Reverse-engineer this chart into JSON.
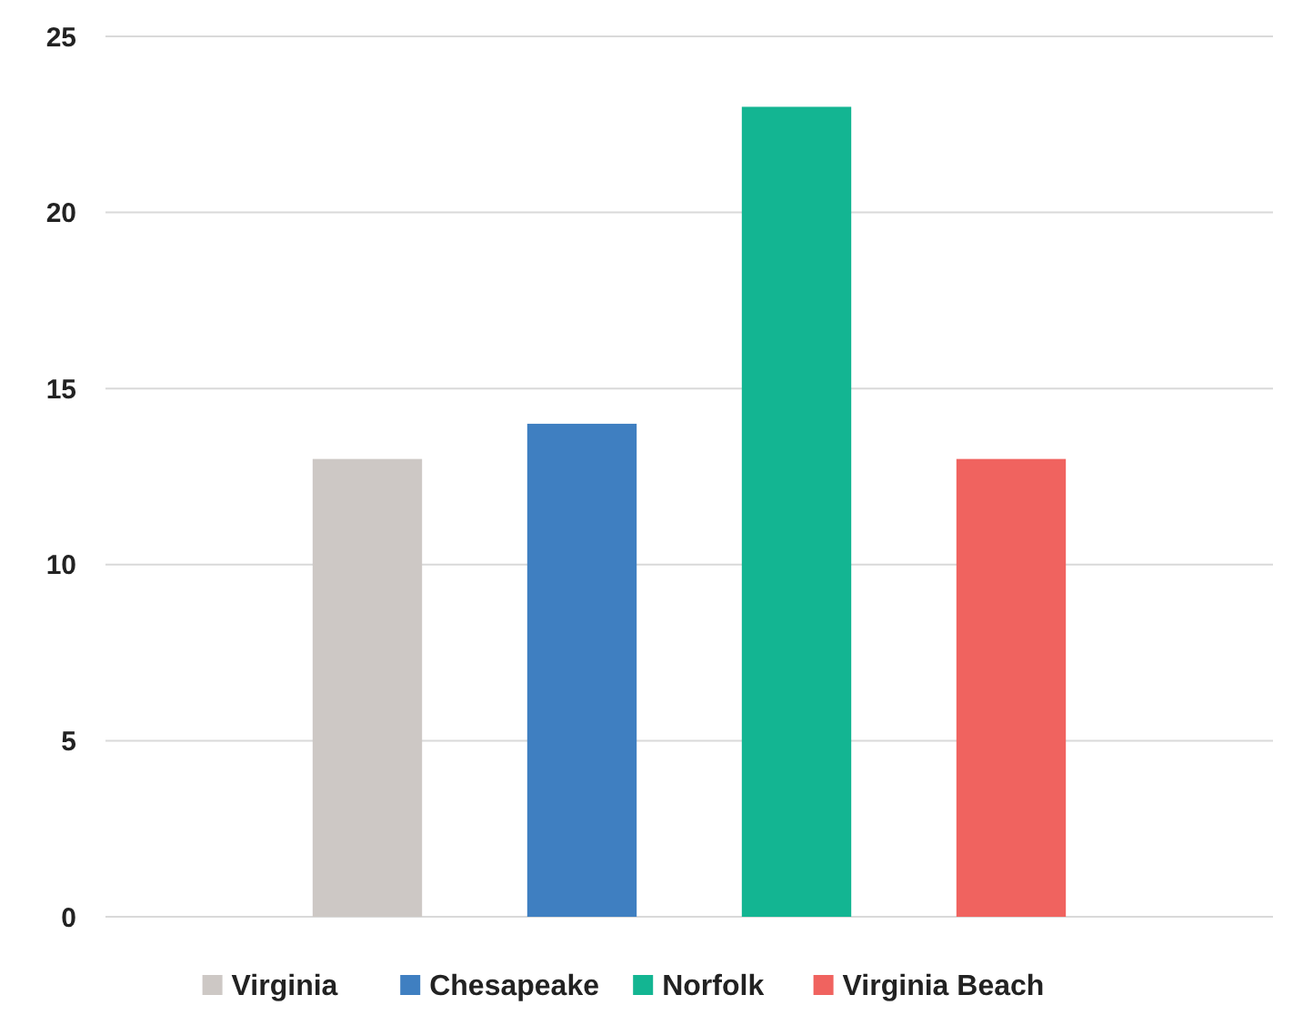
{
  "chart_data": {
    "type": "bar",
    "categories": [
      null
    ],
    "series": [
      {
        "name": "Virginia",
        "color": "#cdc8c5",
        "values": [
          13
        ]
      },
      {
        "name": "Chesapeake",
        "color": "#3f7fc1",
        "values": [
          14
        ]
      },
      {
        "name": "Norfolk",
        "color": "#13b592",
        "values": [
          23
        ]
      },
      {
        "name": "Virginia Beach",
        "color": "#f0635f",
        "values": [
          13
        ]
      }
    ],
    "ylim": [
      0,
      25
    ],
    "yticks": [
      0,
      5,
      10,
      15,
      20,
      25
    ],
    "grid": "y",
    "legend": "bottom"
  }
}
